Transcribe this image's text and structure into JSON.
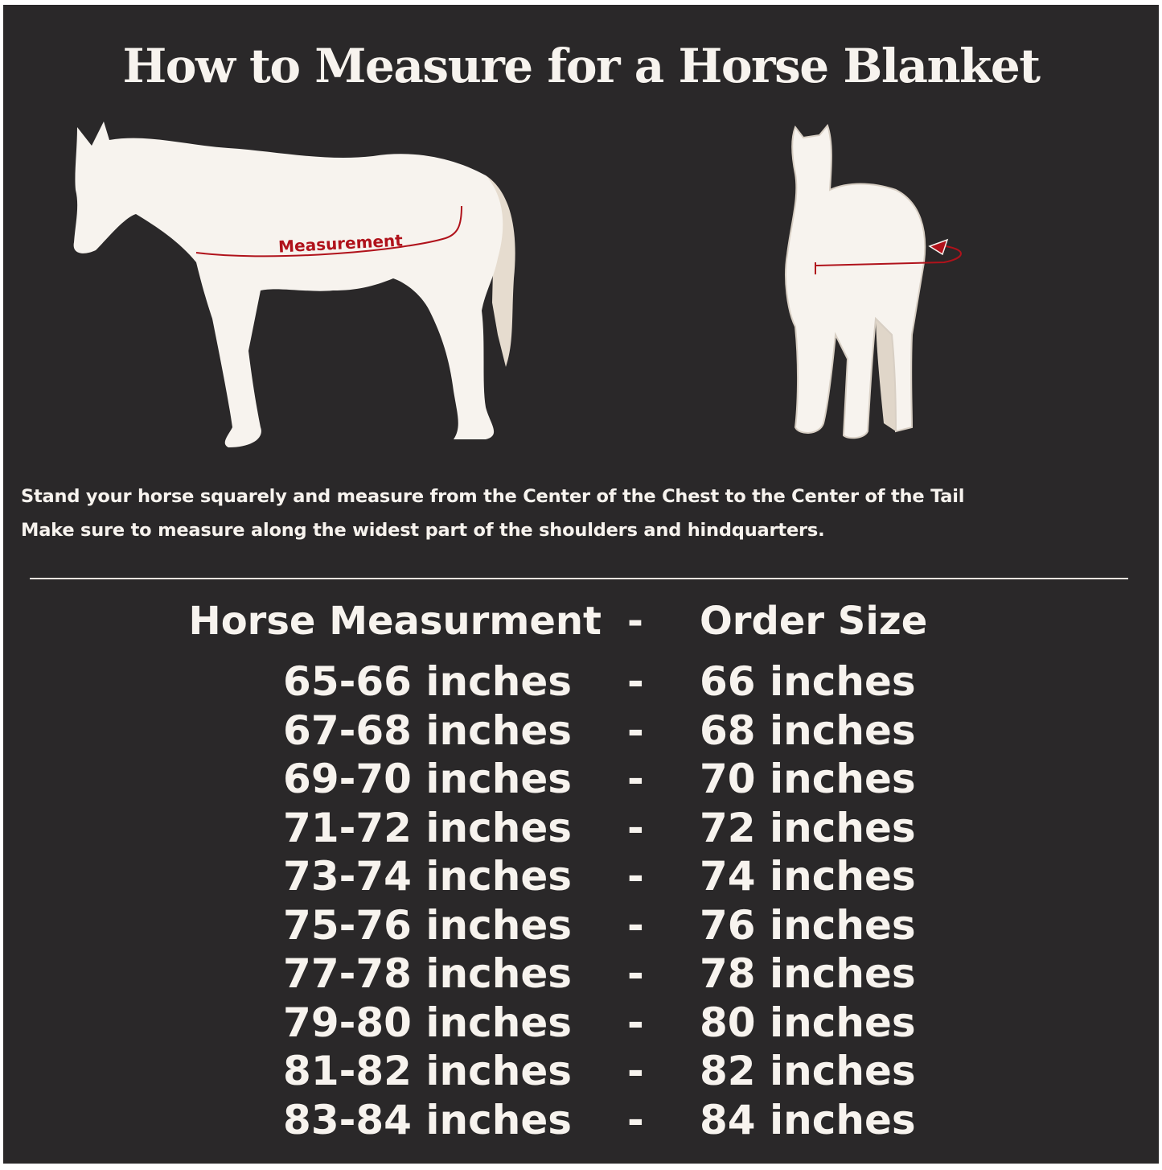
{
  "title": "How to Measure for a Horse Blanket",
  "diagram": {
    "label": "Measurement",
    "accent_color": "#b0121b",
    "horse_color": "#f7f3ee",
    "background": "#2a2829"
  },
  "instructions": [
    "Stand your horse squarely and measure from the Center of the Chest to the Center of the Tail",
    "Make sure to measure along the widest part of the shoulders and hindquarters."
  ],
  "table": {
    "headers": {
      "measurement": "Horse Measurment",
      "separator": "-",
      "size": "Order Size"
    },
    "rows": [
      {
        "measurement": "65-66 inches",
        "separator": "-",
        "size": "66 inches"
      },
      {
        "measurement": "67-68 inches",
        "separator": "-",
        "size": "68 inches"
      },
      {
        "measurement": "69-70 inches",
        "separator": "-",
        "size": "70 inches"
      },
      {
        "measurement": "71-72 inches",
        "separator": "-",
        "size": "72 inches"
      },
      {
        "measurement": "73-74 inches",
        "separator": "-",
        "size": "74 inches"
      },
      {
        "measurement": "75-76 inches",
        "separator": "-",
        "size": "76 inches"
      },
      {
        "measurement": "77-78 inches",
        "separator": "-",
        "size": "78 inches"
      },
      {
        "measurement": "79-80 inches",
        "separator": "-",
        "size": "80 inches"
      },
      {
        "measurement": "81-82 inches",
        "separator": "-",
        "size": "82 inches"
      },
      {
        "measurement": "83-84 inches",
        "separator": "-",
        "size": "84 inches"
      }
    ]
  }
}
